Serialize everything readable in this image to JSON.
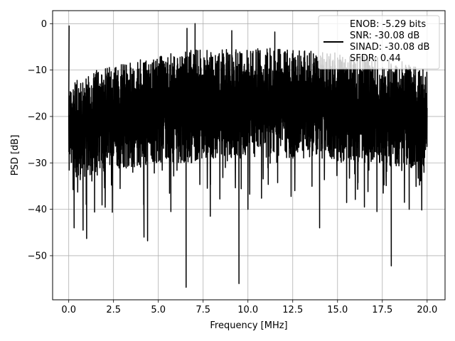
{
  "chart_data": {
    "type": "line",
    "xlabel": "Frequency [MHz]",
    "ylabel": "PSD [dB]",
    "xlim": [
      -0.9,
      21.0
    ],
    "ylim": [
      -59.5,
      2.8
    ],
    "xticks": [
      0.0,
      2.5,
      5.0,
      7.5,
      10.0,
      12.5,
      15.0,
      17.5,
      20.0
    ],
    "xtick_labels": [
      "0.0",
      "2.5",
      "5.0",
      "7.5",
      "10.0",
      "12.5",
      "15.0",
      "17.5",
      "20.0"
    ],
    "yticks": [
      0,
      -10,
      -20,
      -30,
      -40,
      -50
    ],
    "ytick_labels": [
      "0",
      "−10",
      "−20",
      "−30",
      "−40",
      "−50"
    ],
    "grid": true,
    "legend_position": "top-right",
    "legend_lines": [
      "ENOB: -5.29 bits",
      "SNR: -30.08 dB",
      "SINAD: -30.08 dB",
      "SFDR: 0.44"
    ],
    "line_color": "#000000",
    "series": [
      {
        "x_start": 0.0,
        "x_end": 20.0,
        "envelope_x": [
          0,
          0.5,
          1,
          1.5,
          2,
          2.5,
          3,
          3.5,
          4,
          4.5,
          5,
          5.5,
          6,
          6.5,
          7,
          7.5,
          8,
          8.5,
          9,
          9.5,
          10,
          10.5,
          11,
          11.5,
          12,
          12.5,
          13,
          13.5,
          14,
          14.5,
          15,
          15.5,
          16,
          16.5,
          17,
          17.5,
          18,
          18.5,
          19,
          19.5,
          20
        ],
        "envelope_upper": [
          -14,
          -12,
          -11,
          -10,
          -9.5,
          -9,
          -8.5,
          -8,
          -7.5,
          -7,
          -7,
          -6.5,
          -6,
          -6,
          -5.5,
          -5.5,
          -5.5,
          -5.5,
          -5.5,
          -5,
          -5,
          -5,
          -5,
          -5.5,
          -5.5,
          -5.5,
          -5.5,
          -5.5,
          -6,
          -6,
          -6,
          -6.5,
          -6.5,
          -7,
          -7,
          -7.5,
          -8,
          -8,
          -8.5,
          -9,
          -10
        ],
        "envelope_typical_lower": [
          -33,
          -34,
          -33,
          -33,
          -32,
          -32,
          -31,
          -31,
          -31,
          -30,
          -30,
          -30,
          -30,
          -30,
          -30,
          -29,
          -29,
          -29,
          -29,
          -29,
          -29,
          -29,
          -29,
          -29,
          -29,
          -29,
          -29,
          -29,
          -29,
          -29,
          -30,
          -30,
          -30,
          -30,
          -30,
          -30,
          -31,
          -31,
          -31,
          -31,
          -32
        ],
        "dc_spike": {
          "x": 0.02,
          "y": -0.5
        },
        "notable_dips": [
          {
            "x": 6.55,
            "y": -56.8
          },
          {
            "x": 9.5,
            "y": -56.0
          },
          {
            "x": 18.0,
            "y": -52.2
          },
          {
            "x": 4.4,
            "y": -46.8
          },
          {
            "x": 1.0,
            "y": -46.3
          },
          {
            "x": 4.2,
            "y": -46.0
          },
          {
            "x": 14.0,
            "y": -44.0
          },
          {
            "x": 7.9,
            "y": -41.5
          },
          {
            "x": 5.7,
            "y": -40.5
          },
          {
            "x": 17.2,
            "y": -40.5
          },
          {
            "x": 0.3,
            "y": -44.0
          },
          {
            "x": 0.8,
            "y": -44.5
          },
          {
            "x": 10.0,
            "y": -40.0
          },
          {
            "x": 16.5,
            "y": -39.5
          },
          {
            "x": 19.0,
            "y": -40.0
          }
        ],
        "notable_peaks": [
          {
            "x": 7.05,
            "y": 0.0
          },
          {
            "x": 6.6,
            "y": -1.0
          },
          {
            "x": 9.1,
            "y": -1.5
          },
          {
            "x": 11.5,
            "y": -1.8
          }
        ]
      }
    ]
  }
}
